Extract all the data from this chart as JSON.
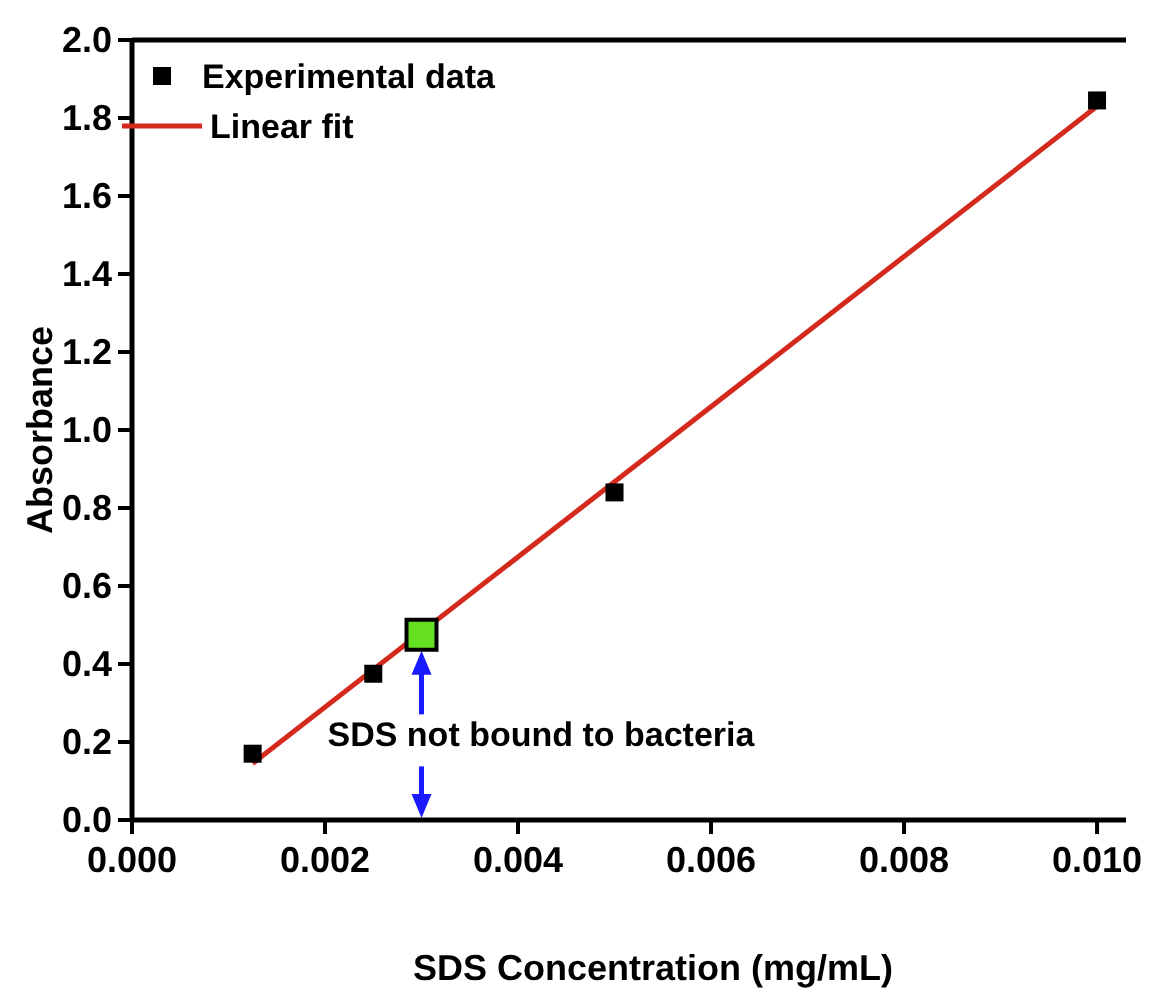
{
  "chart_data": {
    "type": "scatter",
    "xlabel": "SDS Concentration (mg/mL)",
    "ylabel": "Absorbance",
    "xlim": [
      0,
      0.0103
    ],
    "ylim": [
      0,
      2.0
    ],
    "xticks": [
      {
        "value": 0,
        "label": "0.000"
      },
      {
        "value": 0.002,
        "label": "0.002"
      },
      {
        "value": 0.004,
        "label": "0.004"
      },
      {
        "value": 0.006,
        "label": "0.006"
      },
      {
        "value": 0.008,
        "label": "0.008"
      },
      {
        "value": 0.01,
        "label": "0.010"
      }
    ],
    "yticks": [
      {
        "value": 0,
        "label": "0.0"
      },
      {
        "value": 0.2,
        "label": "0.2"
      },
      {
        "value": 0.4,
        "label": "0.4"
      },
      {
        "value": 0.6,
        "label": "0.6"
      },
      {
        "value": 0.8,
        "label": "0.8"
      },
      {
        "value": 1,
        "label": "1.0"
      },
      {
        "value": 1.2,
        "label": "1.2"
      },
      {
        "value": 1.4,
        "label": "1.4"
      },
      {
        "value": 1.6,
        "label": "1.6"
      },
      {
        "value": 1.8,
        "label": "1.8"
      },
      {
        "value": 2,
        "label": "2.0"
      }
    ],
    "grid": false,
    "legend": "top left",
    "marker": "square",
    "series": [
      {
        "name": "Experimental data",
        "color": "#000000",
        "x": [
          0.00125,
          0.0025,
          0.005,
          0.01
        ],
        "values": [
          0.17,
          0.375,
          0.84,
          1.845
        ]
      },
      {
        "name": "Linear fit",
        "type": "line",
        "color": "#d42a1e",
        "x": [
          0.00125,
          0.01
        ],
        "values": [
          0.145,
          1.83
        ],
        "marker": "none"
      },
      {
        "color": "#66e022",
        "x": [
          0.003
        ],
        "values": [
          0.475
        ]
      }
    ],
    "annotations": [
      "SDS not bound to bacteria"
    ]
  }
}
